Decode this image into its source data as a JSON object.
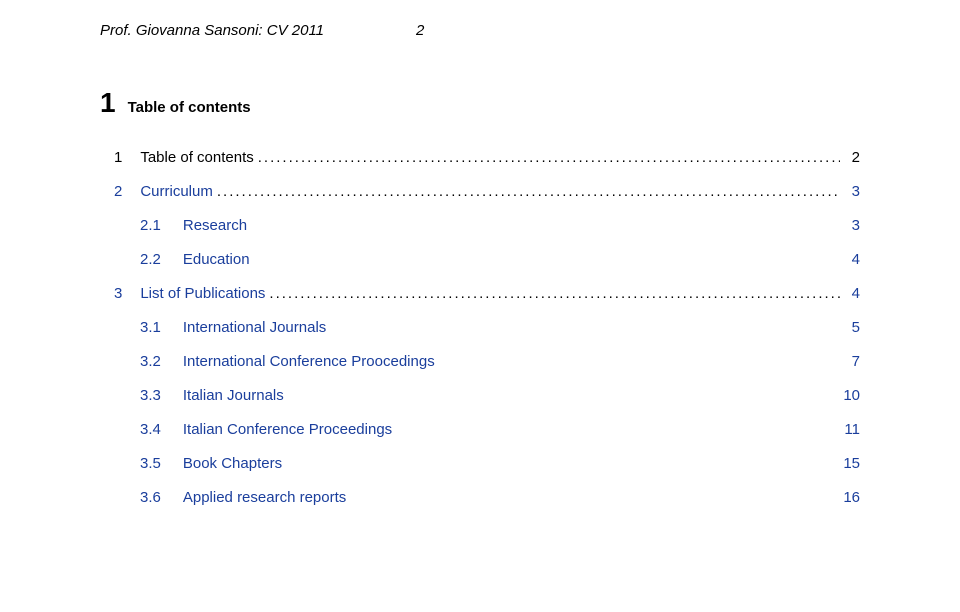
{
  "header": {
    "title": "Prof. Giovanna Sansoni: CV 2011",
    "pagenum": "2"
  },
  "sectionHead": {
    "num": "1",
    "title": "Table of contents"
  },
  "toc": [
    {
      "indent": 0,
      "num": "1",
      "label": "Table of contents",
      "page": "2",
      "dots": true,
      "blue": false
    },
    {
      "indent": 0,
      "num": "2",
      "label": "Curriculum",
      "page": "3",
      "dots": true,
      "blue": true
    },
    {
      "indent": 1,
      "num": "2.1",
      "label": "Research",
      "page": "3",
      "dots": false,
      "blue": true
    },
    {
      "indent": 1,
      "num": "2.2",
      "label": "Education",
      "page": "4",
      "dots": false,
      "blue": true
    },
    {
      "indent": 0,
      "num": "3",
      "label": "List of Publications",
      "page": "4",
      "dots": true,
      "blue": true
    },
    {
      "indent": 1,
      "num": "3.1",
      "label": "International Journals",
      "page": "5",
      "dots": false,
      "blue": true
    },
    {
      "indent": 1,
      "num": "3.2",
      "label": "International Conference Proocedings",
      "page": "7",
      "dots": false,
      "blue": true
    },
    {
      "indent": 1,
      "num": "3.3",
      "label": "Italian Journals",
      "page": "10",
      "dots": false,
      "blue": true
    },
    {
      "indent": 1,
      "num": "3.4",
      "label": "Italian Conference Proceedings",
      "page": "11",
      "dots": false,
      "blue": true
    },
    {
      "indent": 1,
      "num": "3.5",
      "label": "Book Chapters",
      "page": "15",
      "dots": false,
      "blue": true
    },
    {
      "indent": 1,
      "num": "3.6",
      "label": "Applied research reports",
      "page": "16",
      "dots": false,
      "blue": true
    }
  ]
}
